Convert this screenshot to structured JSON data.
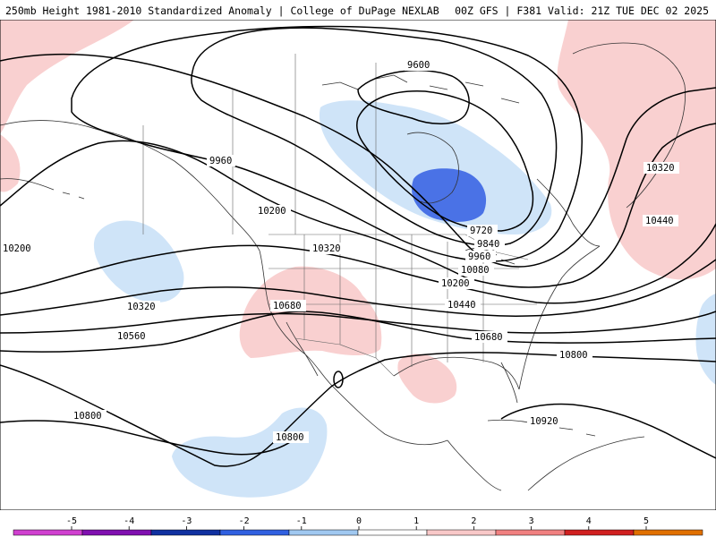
{
  "header": {
    "title_left": "250mb Height 1981-2010 Standardized Anomaly | College of DuPage NEXLAB",
    "title_right": "00Z GFS | F381 Valid: 21Z TUE DEC 02 2025"
  },
  "contour_labels": [
    "9600",
    "9720",
    "9840",
    "9960",
    "9960",
    "10080",
    "10200",
    "10200",
    "10200",
    "10320",
    "10320",
    "10320",
    "10440",
    "10440",
    "10560",
    "10680",
    "10680",
    "10800",
    "10800",
    "10800",
    "10920"
  ],
  "colorbar": {
    "ticks": [
      "-5",
      "-4",
      "-3",
      "-2",
      "-1",
      "0",
      "1",
      "2",
      "3",
      "4",
      "5"
    ],
    "colors": [
      "#d040d0",
      "#8010b0",
      "#1030a0",
      "#3060e0",
      "#a0c8f0",
      "#ffffff",
      "#f8c8c8",
      "#f08080",
      "#d02020",
      "#e07000",
      "#f0b000"
    ]
  }
}
